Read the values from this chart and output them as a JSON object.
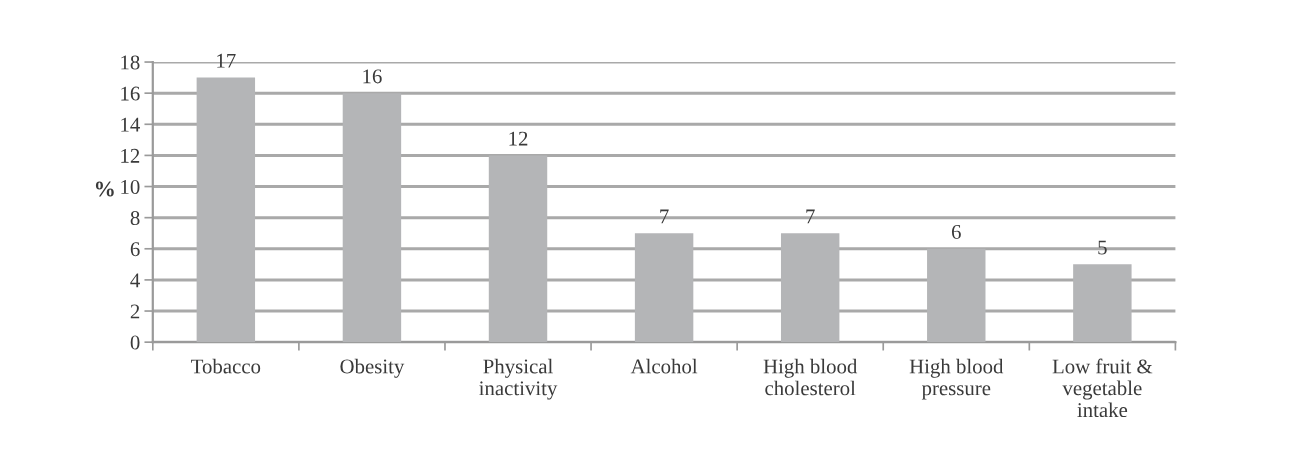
{
  "chart_data": {
    "type": "bar",
    "ylabel": "%",
    "categories": [
      "Tobacco",
      "Obesity",
      "Physical\ninactivity",
      "Alcohol",
      "High blood\ncholesterol",
      "High blood\npressure",
      "Low fruit &\nvegetable\nintake"
    ],
    "values": [
      17,
      16,
      12,
      7,
      7,
      6,
      5
    ],
    "color": "#b4b5b7",
    "ylim": [
      0,
      18
    ],
    "yticks": [
      0,
      2,
      4,
      6,
      8,
      10,
      12,
      14,
      16,
      18
    ],
    "grid": "y",
    "data_labels": true
  }
}
